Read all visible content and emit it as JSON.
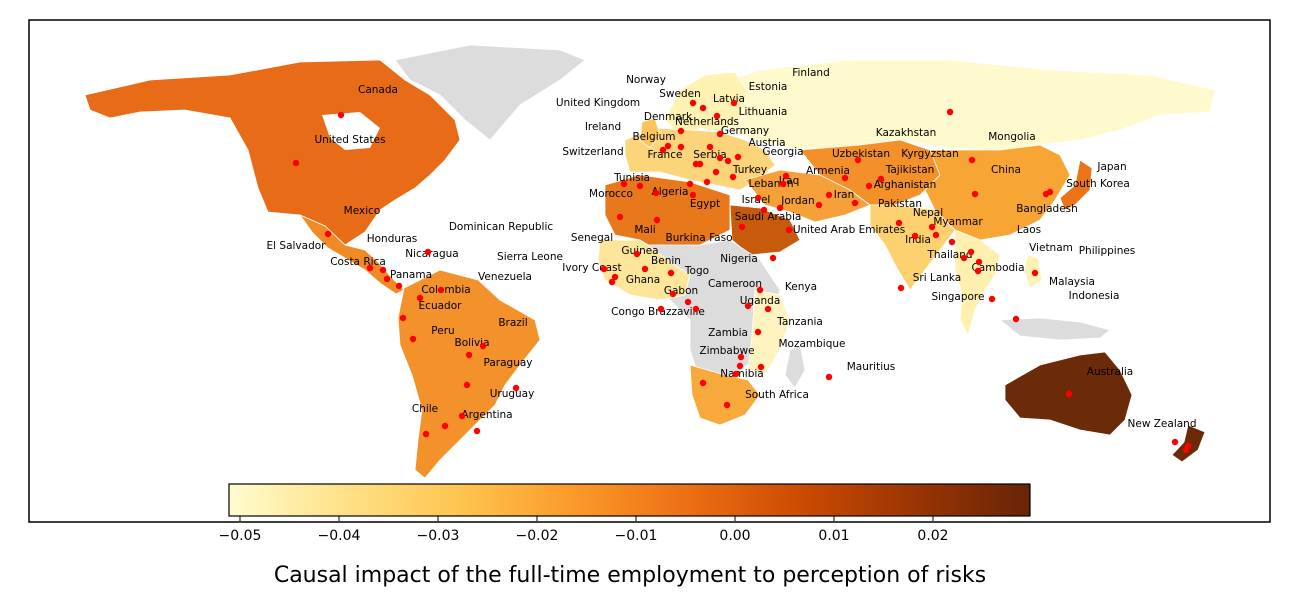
{
  "colorbar": {
    "label": "Causal impact of the full-time employment to perception of risks",
    "ticks": [
      "−0.05",
      "−0.04",
      "−0.03",
      "−0.02",
      "−0.01",
      "0.00",
      "0.01",
      "0.02"
    ],
    "colors": [
      "#fffcd0",
      "#ffe28a",
      "#fec44f",
      "#fb9a29",
      "#ec7014",
      "#cc4c02",
      "#993404",
      "#662506"
    ]
  },
  "regions": [
    {
      "name": "North America",
      "color": "#e86c17"
    },
    {
      "name": "Central America",
      "color": "#f08a24"
    },
    {
      "name": "South America",
      "color": "#f3922a"
    },
    {
      "name": "Greenland",
      "color": "#dcdcdc"
    },
    {
      "name": "Russia",
      "color": "#fffacd"
    },
    {
      "name": "Scandinavia",
      "color": "#fff2b3"
    },
    {
      "name": "Western Europe",
      "color": "#fcd47a"
    },
    {
      "name": "North Africa",
      "color": "#e8781c"
    },
    {
      "name": "Saudi Arabia",
      "color": "#c85a0c"
    },
    {
      "name": "Central Asia",
      "color": "#f3902a"
    },
    {
      "name": "China",
      "color": "#f7a534"
    },
    {
      "name": "India",
      "color": "#fdd070"
    },
    {
      "name": "Southeast Asia",
      "color": "#fff0b0"
    },
    {
      "name": "Central Africa",
      "color": "#dcdcdc"
    },
    {
      "name": "West Africa",
      "color": "#fde69a"
    },
    {
      "name": "East Africa",
      "color": "#fff4c0"
    },
    {
      "name": "Southern Africa",
      "color": "#f8a93c"
    },
    {
      "name": "Australia",
      "color": "#6b2a08"
    },
    {
      "name": "New Zealand",
      "color": "#6b2a08"
    },
    {
      "name": "Japan",
      "color": "#ec7418"
    }
  ],
  "countries": [
    "Canada",
    "United States",
    "Mexico",
    "El Salvador",
    "Honduras",
    "Nicaragua",
    "Dominican Republic",
    "Costa Rica",
    "Panama",
    "Venezuela",
    "Colombia",
    "Ecuador",
    "Brazil",
    "Peru",
    "Bolivia",
    "Paraguay",
    "Uruguay",
    "Chile",
    "Argentina",
    "Norway",
    "Sweden",
    "Finland",
    "Estonia",
    "Latvia",
    "Lithuania",
    "United Kingdom",
    "Denmark",
    "Netherlands",
    "Ireland",
    "Belgium",
    "Germany",
    "Austria",
    "Switzerland",
    "France",
    "Serbia",
    "Georgia",
    "Turkey",
    "Lebanon",
    "Iraq",
    "Armenia",
    "Tunisia",
    "Algeria",
    "Morocco",
    "Egypt",
    "Israel",
    "Jordan",
    "Saudi Arabia",
    "Iran",
    "United Arab Emirates",
    "Kazakhstan",
    "Uzbekistan",
    "Kyrgyzstan",
    "Tajikistan",
    "Afghanistan",
    "Pakistan",
    "Mongolia",
    "China",
    "Japan",
    "South Korea",
    "Nepal",
    "Bangladesh",
    "India",
    "Myanmar",
    "Laos",
    "Vietnam",
    "Philippines",
    "Thailand",
    "Cambodia",
    "Sri Lanka",
    "Malaysia",
    "Singapore",
    "Indonesia",
    "Senegal",
    "Mali",
    "Burkina Faso",
    "Sierra Leone",
    "Guinea",
    "Benin",
    "Nigeria",
    "Ivory Coast",
    "Ghana",
    "Togo",
    "Cameroon",
    "Gabon",
    "Congo Brazzaville",
    "Uganda",
    "Kenya",
    "Tanzania",
    "Zambia",
    "Zimbabwe",
    "Mozambique",
    "Namibia",
    "Mauritius",
    "South Africa",
    "Australia",
    "New Zealand"
  ]
}
